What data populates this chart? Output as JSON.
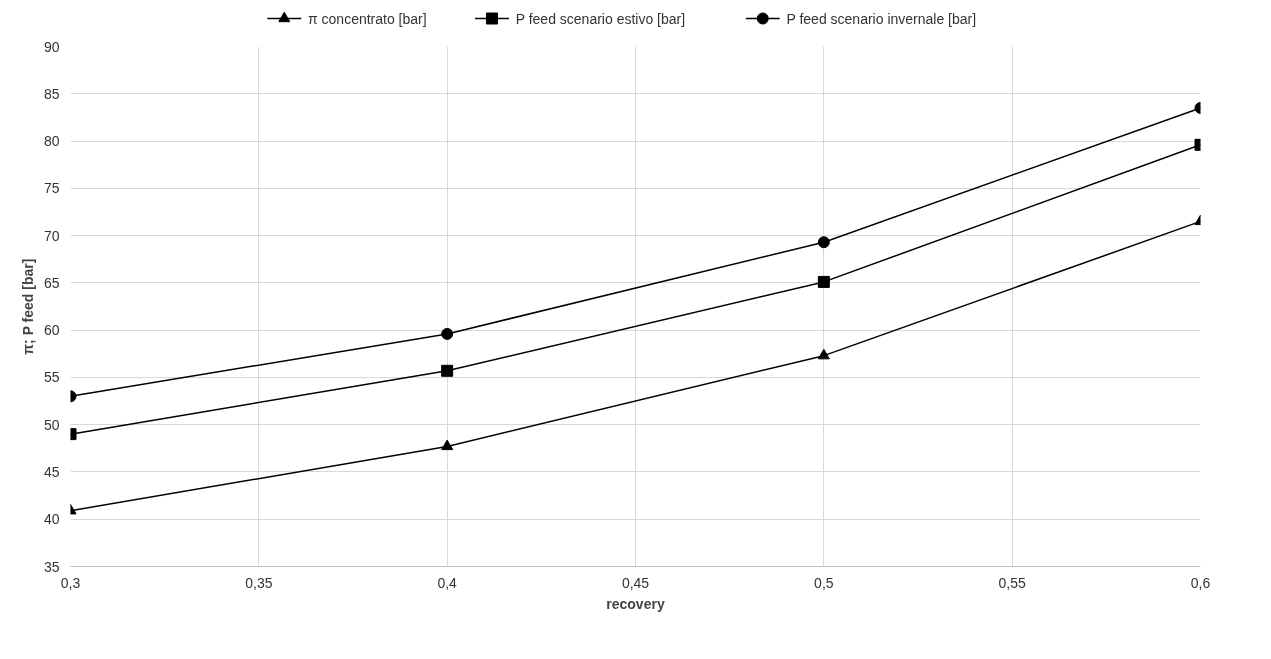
{
  "chart_data": {
    "type": "line",
    "xlabel": "recovery",
    "ylabel": "π; P feed [bar]",
    "x": [
      0.3,
      0.4,
      0.5,
      0.6
    ],
    "series": [
      {
        "name": "π concentrato [bar]",
        "color": "#000000",
        "marker": "triangle",
        "values": [
          40.9,
          47.7,
          57.3,
          71.5
        ]
      },
      {
        "name": "P feed scenario estivo [bar]",
        "color": "#000000",
        "marker": "square",
        "values": [
          49.0,
          55.7,
          65.1,
          79.6
        ]
      },
      {
        "name": "P feed scenario invernale [bar]",
        "color": "#000000",
        "marker": "circle",
        "values": [
          53.0,
          59.6,
          69.3,
          83.5
        ]
      }
    ],
    "xlim": [
      0.3,
      0.6
    ],
    "xticks": [
      {
        "value": 0.3,
        "label": "0,3"
      },
      {
        "value": 0.35,
        "label": "0,35"
      },
      {
        "value": 0.4,
        "label": "0,4"
      },
      {
        "value": 0.45,
        "label": "0,45"
      },
      {
        "value": 0.5,
        "label": "0,5"
      },
      {
        "value": 0.55,
        "label": "0,55"
      },
      {
        "value": 0.6,
        "label": "0,6"
      }
    ],
    "ylim": [
      35,
      90
    ],
    "yticks": [
      35,
      40,
      45,
      50,
      55,
      60,
      65,
      70,
      75,
      80,
      85,
      90
    ],
    "grid": true,
    "legend": "top",
    "line_style": "solid"
  }
}
